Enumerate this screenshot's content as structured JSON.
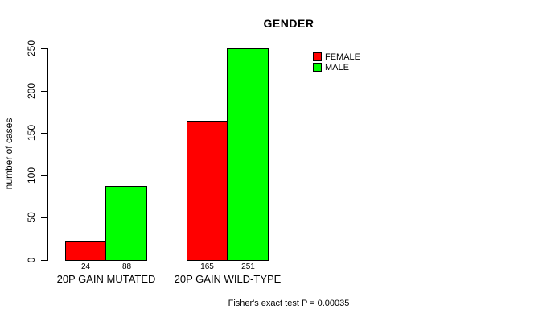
{
  "chart_data": {
    "type": "bar",
    "title": "GENDER",
    "ylabel": "number of cases",
    "xlabel": "",
    "categories": [
      "20P GAIN MUTATED",
      "20P GAIN WILD-TYPE"
    ],
    "series": [
      {
        "name": "FEMALE",
        "color": "#ff0000",
        "values": [
          24,
          165
        ]
      },
      {
        "name": "MALE",
        "color": "#00ff00",
        "values": [
          88,
          251
        ]
      }
    ],
    "yticks": [
      0,
      50,
      100,
      150,
      200,
      250
    ],
    "ylim": [
      0,
      250
    ],
    "grid": false,
    "legend_position": "top-right",
    "annotation": "Fisher's exact test P = 0.00035"
  }
}
